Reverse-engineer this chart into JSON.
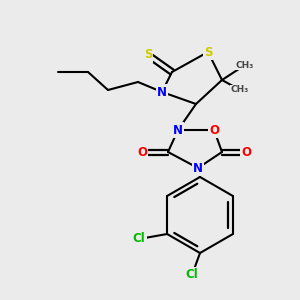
{
  "background_color": "#ebebeb",
  "figsize": [
    3.0,
    3.0
  ],
  "dpi": 100,
  "colors": {
    "S": "#cccc00",
    "N": "#0000ff",
    "O": "#ff0000",
    "C": "#000000",
    "Cl": "#00bb00",
    "bond": "#000000"
  }
}
